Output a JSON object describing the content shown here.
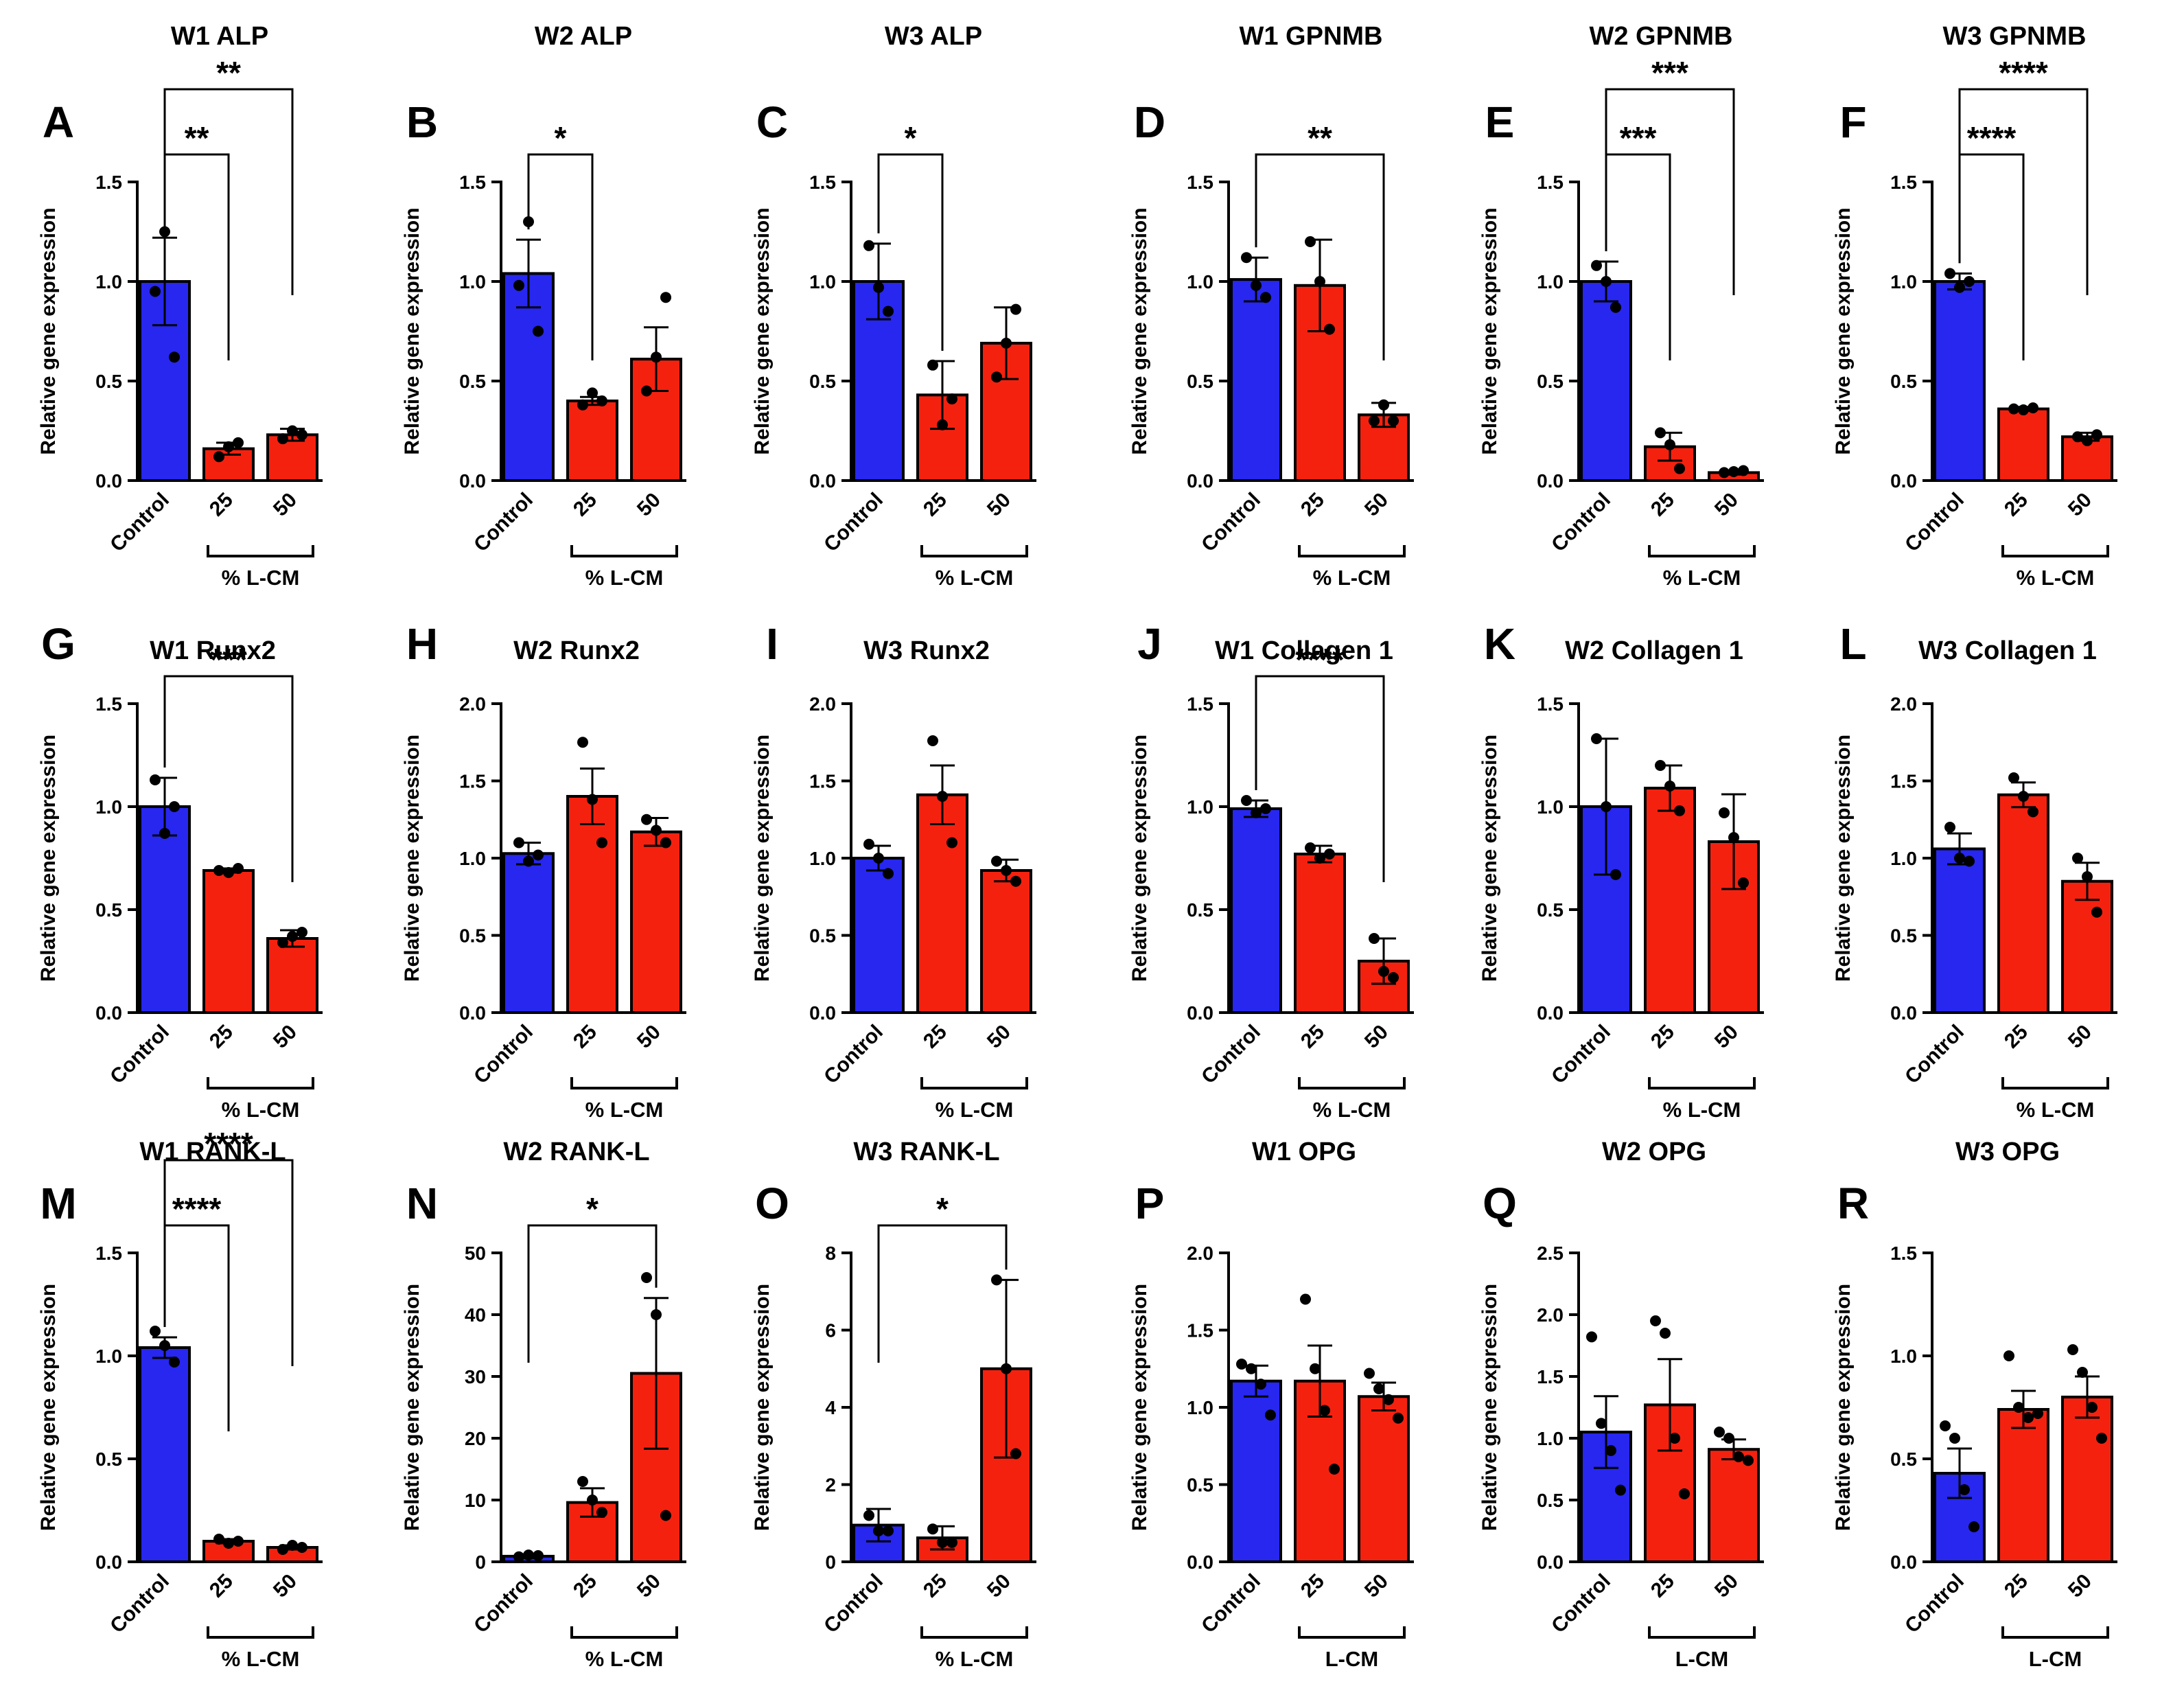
{
  "colors": {
    "control": "#2727f0",
    "treated": "#f5210f",
    "axis": "#000000"
  },
  "common": {
    "ylabel": "Relative gene expression",
    "categories": [
      "Control",
      "25",
      "50"
    ],
    "group_label": "% L-CM",
    "group_label_opg": "L-CM"
  },
  "chart_data": [
    {
      "panel": "A",
      "title": "W1 ALP",
      "type": "bar",
      "ylim": [
        0,
        1.5
      ],
      "yticks": [
        "0.0",
        "0.5",
        "1.0",
        "1.5"
      ],
      "values": [
        1.0,
        0.16,
        0.23
      ],
      "errors": [
        0.22,
        0.03,
        0.03
      ],
      "points": [
        [
          0.95,
          1.25,
          0.62
        ],
        [
          0.12,
          0.17,
          0.19
        ],
        [
          0.21,
          0.25,
          0.23
        ]
      ],
      "group_label": "% L-CM",
      "comparisons": [
        {
          "from": 0,
          "to": 1,
          "label": "**"
        },
        {
          "from": 0,
          "to": 2,
          "label": "**"
        }
      ]
    },
    {
      "panel": "B",
      "title": "W2 ALP",
      "type": "bar",
      "ylim": [
        0,
        1.5
      ],
      "yticks": [
        "0.0",
        "0.5",
        "1.0",
        "1.5"
      ],
      "values": [
        1.04,
        0.4,
        0.61
      ],
      "errors": [
        0.17,
        0.02,
        0.16
      ],
      "points": [
        [
          0.98,
          1.3,
          0.75
        ],
        [
          0.38,
          0.44,
          0.4
        ],
        [
          0.45,
          0.62,
          0.92
        ]
      ],
      "group_label": "% L-CM",
      "comparisons": [
        {
          "from": 0,
          "to": 1,
          "label": "*"
        }
      ]
    },
    {
      "panel": "C",
      "title": "W3 ALP",
      "type": "bar",
      "ylim": [
        0,
        1.5
      ],
      "yticks": [
        "0.0",
        "0.5",
        "1.0",
        "1.5"
      ],
      "values": [
        1.0,
        0.43,
        0.69
      ],
      "errors": [
        0.19,
        0.17,
        0.18
      ],
      "points": [
        [
          1.18,
          0.97,
          0.85
        ],
        [
          0.58,
          0.28,
          0.41
        ],
        [
          0.52,
          0.69,
          0.86
        ]
      ],
      "group_label": "% L-CM",
      "comparisons": [
        {
          "from": 0,
          "to": 1,
          "label": "*"
        }
      ]
    },
    {
      "panel": "D",
      "title": "W1 GPNMB",
      "type": "bar",
      "ylim": [
        0,
        1.5
      ],
      "yticks": [
        "0.0",
        "0.5",
        "1.0",
        "1.5"
      ],
      "values": [
        1.01,
        0.98,
        0.33
      ],
      "errors": [
        0.11,
        0.23,
        0.06
      ],
      "points": [
        [
          1.12,
          0.98,
          0.92
        ],
        [
          1.2,
          1.0,
          0.76
        ],
        [
          0.3,
          0.38,
          0.3
        ]
      ],
      "group_label": "% L-CM",
      "comparisons": [
        {
          "from": 0,
          "to": 2,
          "label": "**"
        }
      ]
    },
    {
      "panel": "E",
      "title": "W2 GPNMB",
      "type": "bar",
      "ylim": [
        0,
        1.5
      ],
      "yticks": [
        "0.0",
        "0.5",
        "1.0",
        "1.5"
      ],
      "values": [
        1.0,
        0.17,
        0.04
      ],
      "errors": [
        0.1,
        0.07,
        0.01
      ],
      "points": [
        [
          1.08,
          1.0,
          0.87
        ],
        [
          0.24,
          0.18,
          0.06
        ],
        [
          0.04,
          0.045,
          0.05
        ]
      ],
      "group_label": "% L-CM",
      "comparisons": [
        {
          "from": 0,
          "to": 1,
          "label": "***"
        },
        {
          "from": 0,
          "to": 2,
          "label": "***"
        }
      ]
    },
    {
      "panel": "F",
      "title": "W3 GPNMB",
      "type": "bar",
      "ylim": [
        0,
        1.5
      ],
      "yticks": [
        "0.0",
        "0.5",
        "1.0",
        "1.5"
      ],
      "values": [
        1.0,
        0.36,
        0.22
      ],
      "errors": [
        0.04,
        0.01,
        0.02
      ],
      "points": [
        [
          1.04,
          0.97,
          1.0
        ],
        [
          0.36,
          0.355,
          0.365
        ],
        [
          0.22,
          0.2,
          0.23
        ]
      ],
      "group_label": "% L-CM",
      "comparisons": [
        {
          "from": 0,
          "to": 1,
          "label": "****"
        },
        {
          "from": 0,
          "to": 2,
          "label": "****"
        }
      ]
    },
    {
      "panel": "G",
      "title": "W1 Runx2",
      "type": "bar",
      "ylim": [
        0,
        1.5
      ],
      "yticks": [
        "0.0",
        "0.5",
        "1.0",
        "1.5"
      ],
      "values": [
        1.0,
        0.69,
        0.36
      ],
      "errors": [
        0.14,
        0.01,
        0.04
      ],
      "points": [
        [
          1.13,
          0.87,
          1.0
        ],
        [
          0.69,
          0.68,
          0.7
        ],
        [
          0.34,
          0.37,
          0.39
        ]
      ],
      "group_label": "% L-CM",
      "comparisons": [
        {
          "from": 0,
          "to": 2,
          "label": "***"
        }
      ]
    },
    {
      "panel": "H",
      "title": "W2 Runx2",
      "type": "bar",
      "ylim": [
        0,
        2.0
      ],
      "yticks": [
        "0.0",
        "0.5",
        "1.0",
        "1.5",
        "2.0"
      ],
      "values": [
        1.03,
        1.4,
        1.17
      ],
      "errors": [
        0.07,
        0.18,
        0.09
      ],
      "points": [
        [
          1.1,
          0.98,
          1.02
        ],
        [
          1.75,
          1.38,
          1.1
        ],
        [
          1.25,
          1.18,
          1.1
        ]
      ],
      "group_label": "% L-CM",
      "comparisons": []
    },
    {
      "panel": "I",
      "title": "W3 Runx2",
      "type": "bar",
      "ylim": [
        0,
        2.0
      ],
      "yticks": [
        "0.0",
        "0.5",
        "1.0",
        "1.5",
        "2.0"
      ],
      "values": [
        1.0,
        1.41,
        0.92
      ],
      "errors": [
        0.08,
        0.19,
        0.07
      ],
      "points": [
        [
          1.09,
          1.0,
          0.9
        ],
        [
          1.76,
          1.4,
          1.1
        ],
        [
          0.98,
          0.92,
          0.85
        ]
      ],
      "group_label": "% L-CM",
      "comparisons": []
    },
    {
      "panel": "J",
      "title": "W1 Collagen 1",
      "type": "bar",
      "ylim": [
        0,
        1.5
      ],
      "yticks": [
        "0.0",
        "0.5",
        "1.0",
        "1.5"
      ],
      "values": [
        0.99,
        0.77,
        0.25
      ],
      "errors": [
        0.04,
        0.04,
        0.11
      ],
      "points": [
        [
          1.03,
          0.97,
          0.99
        ],
        [
          0.8,
          0.75,
          0.77
        ],
        [
          0.36,
          0.2,
          0.17
        ]
      ],
      "group_label": "% L-CM",
      "comparisons": [
        {
          "from": 0,
          "to": 2,
          "label": "****"
        }
      ]
    },
    {
      "panel": "K",
      "title": "W2 Collagen 1",
      "type": "bar",
      "ylim": [
        0,
        1.5
      ],
      "yticks": [
        "0.0",
        "0.5",
        "1.0",
        "1.5"
      ],
      "values": [
        1.0,
        1.09,
        0.83
      ],
      "errors": [
        0.33,
        0.11,
        0.23
      ],
      "points": [
        [
          1.33,
          1.0,
          0.67
        ],
        [
          1.2,
          1.1,
          0.98
        ],
        [
          0.97,
          0.85,
          0.63
        ]
      ],
      "group_label": "% L-CM",
      "comparisons": []
    },
    {
      "panel": "L",
      "title": "W3 Collagen 1",
      "type": "bar",
      "ylim": [
        0,
        2.0
      ],
      "yticks": [
        "0.0",
        "0.5",
        "1.0",
        "1.5",
        "2.0"
      ],
      "values": [
        1.06,
        1.41,
        0.85
      ],
      "errors": [
        0.1,
        0.08,
        0.12
      ],
      "points": [
        [
          1.2,
          1.0,
          0.98
        ],
        [
          1.52,
          1.4,
          1.3
        ],
        [
          1.0,
          0.88,
          0.65
        ]
      ],
      "group_label": "% L-CM",
      "comparisons": []
    },
    {
      "panel": "M",
      "title": "W1 RANK-L",
      "type": "bar",
      "ylim": [
        0,
        1.5
      ],
      "yticks": [
        "0.0",
        "0.5",
        "1.0",
        "1.5"
      ],
      "values": [
        1.04,
        0.1,
        0.07
      ],
      "errors": [
        0.05,
        0.01,
        0.01
      ],
      "points": [
        [
          1.12,
          1.05,
          0.97
        ],
        [
          0.11,
          0.09,
          0.1
        ],
        [
          0.06,
          0.08,
          0.07
        ]
      ],
      "group_label": "% L-CM",
      "comparisons": [
        {
          "from": 0,
          "to": 1,
          "label": "****"
        },
        {
          "from": 0,
          "to": 2,
          "label": "****"
        }
      ]
    },
    {
      "panel": "N",
      "title": "W2 RANK-L",
      "type": "bar",
      "ylim": [
        0,
        50
      ],
      "yticks": [
        "0",
        "10",
        "20",
        "30",
        "40",
        "50"
      ],
      "values": [
        0.9,
        9.6,
        30.5
      ],
      "errors": [
        0.3,
        2.3,
        12.2
      ],
      "points": [
        [
          0.8,
          1.1,
          1.0
        ],
        [
          13.0,
          10.0,
          8.0
        ],
        [
          46.0,
          40.0,
          7.5
        ]
      ],
      "group_label": "% L-CM",
      "comparisons": [
        {
          "from": 0,
          "to": 2,
          "label": "*"
        }
      ]
    },
    {
      "panel": "O",
      "title": "W3 RANK-L",
      "type": "bar",
      "ylim": [
        0,
        8
      ],
      "yticks": [
        "0",
        "2",
        "4",
        "6",
        "8"
      ],
      "values": [
        0.95,
        0.62,
        5.0
      ],
      "errors": [
        0.42,
        0.3,
        2.3
      ],
      "points": [
        [
          1.2,
          0.8,
          0.8
        ],
        [
          0.85,
          0.5,
          0.5
        ],
        [
          7.3,
          5.0,
          2.8
        ]
      ],
      "group_label": "% L-CM",
      "comparisons": [
        {
          "from": 0,
          "to": 2,
          "label": "*"
        }
      ]
    },
    {
      "panel": "P",
      "title": "W1 OPG",
      "type": "bar",
      "ylim": [
        0,
        2.0
      ],
      "yticks": [
        "0.0",
        "0.5",
        "1.0",
        "1.5",
        "2.0"
      ],
      "values": [
        1.17,
        1.17,
        1.07
      ],
      "errors": [
        0.1,
        0.23,
        0.09
      ],
      "points": [
        [
          1.28,
          1.25,
          1.15,
          0.95
        ],
        [
          1.7,
          1.25,
          0.98,
          0.6
        ],
        [
          1.22,
          1.12,
          1.05,
          0.93
        ]
      ],
      "group_label": "L-CM",
      "comparisons": []
    },
    {
      "panel": "Q",
      "title": "W2 OPG",
      "type": "bar",
      "ylim": [
        0,
        2.5
      ],
      "yticks": [
        "0.0",
        "0.5",
        "1.0",
        "1.5",
        "2.0",
        "2.5"
      ],
      "values": [
        1.05,
        1.27,
        0.91
      ],
      "errors": [
        0.29,
        0.37,
        0.08
      ],
      "points": [
        [
          1.82,
          1.12,
          0.9,
          0.58
        ],
        [
          1.95,
          1.85,
          1.0,
          0.55
        ],
        [
          1.05,
          1.0,
          0.85,
          0.82
        ]
      ],
      "group_label": "L-CM",
      "comparisons": []
    },
    {
      "panel": "R",
      "title": "W3 OPG",
      "type": "bar",
      "ylim": [
        0,
        1.5
      ],
      "yticks": [
        "0.0",
        "0.5",
        "1.0",
        "1.5"
      ],
      "values": [
        0.43,
        0.74,
        0.8
      ],
      "errors": [
        0.12,
        0.09,
        0.1
      ],
      "points": [
        [
          0.66,
          0.6,
          0.35,
          0.17
        ],
        [
          1.0,
          0.75,
          0.7,
          0.72
        ],
        [
          1.03,
          0.92,
          0.75,
          0.6
        ]
      ],
      "group_label": "L-CM",
      "comparisons": []
    }
  ]
}
